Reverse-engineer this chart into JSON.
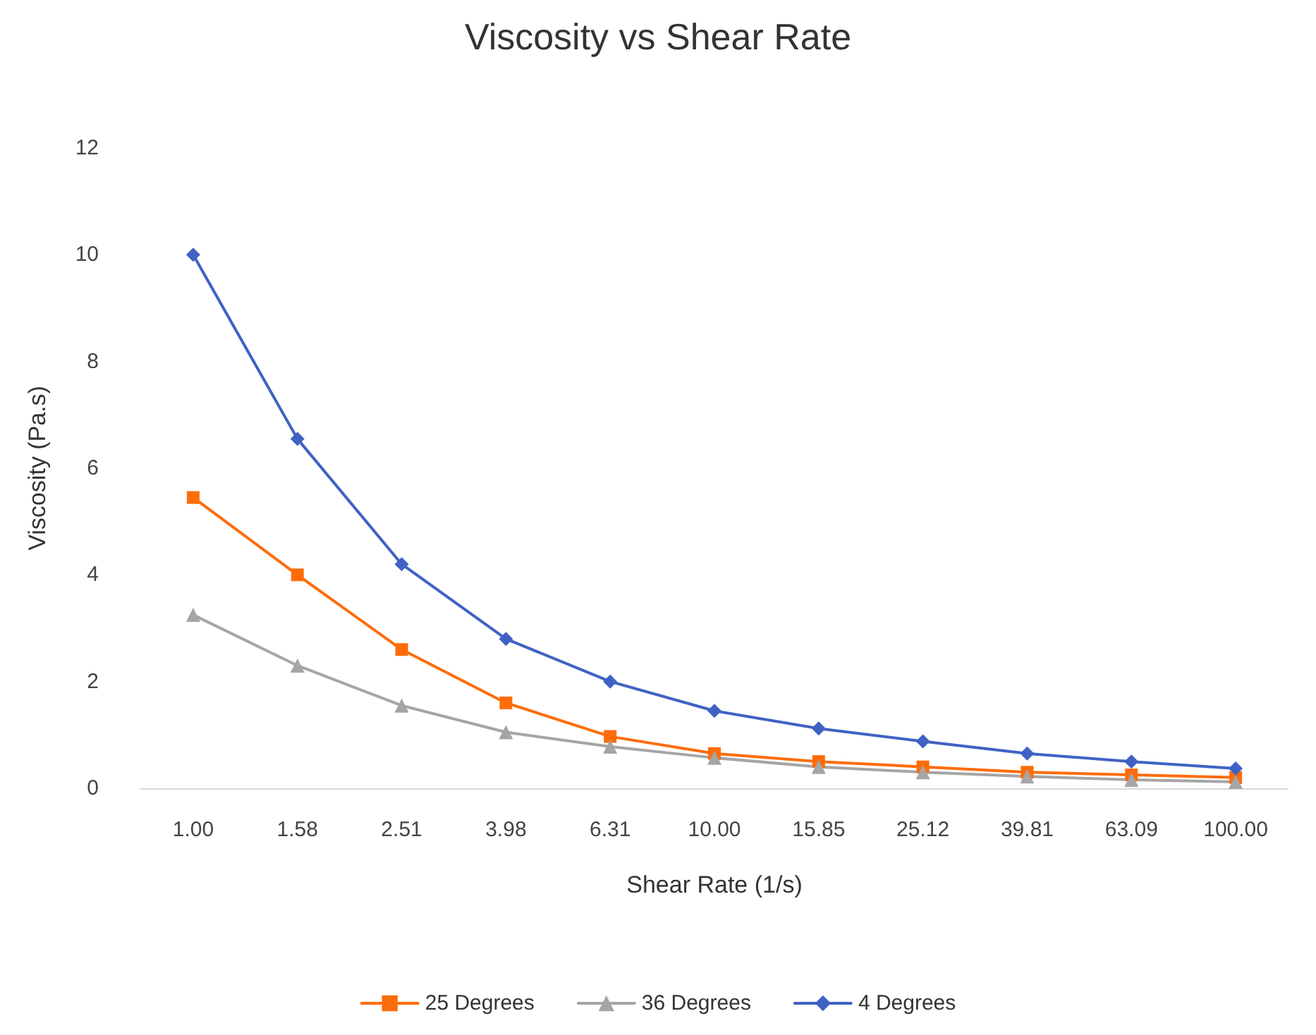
{
  "chart_data": {
    "type": "line",
    "title": "Viscosity vs Shear Rate",
    "xlabel": "Shear Rate (1/s)",
    "ylabel": "Viscosity (Pa.s)",
    "categories": [
      "1.00",
      "1.58",
      "2.51",
      "3.98",
      "6.31",
      "10.00",
      "15.85",
      "25.12",
      "39.81",
      "63.09",
      "100.00"
    ],
    "ylim": [
      0,
      12
    ],
    "yticks": [
      0,
      2,
      4,
      6,
      8,
      10,
      12
    ],
    "legend": "bottom",
    "series": [
      {
        "name": "25 Degrees",
        "color": "#fd6c0a",
        "marker": "square",
        "values": [
          5.45,
          4.0,
          2.6,
          1.6,
          0.97,
          0.65,
          0.5,
          0.4,
          0.3,
          0.25,
          0.2
        ]
      },
      {
        "name": "36 Degrees",
        "color": "#a5a5a5",
        "marker": "triangle",
        "values": [
          3.25,
          2.3,
          1.55,
          1.05,
          0.78,
          0.57,
          0.4,
          0.3,
          0.22,
          0.16,
          0.12
        ]
      },
      {
        "name": "4 Degrees",
        "color": "#3f62c4",
        "marker": "diamond",
        "values": [
          10.0,
          6.55,
          4.2,
          2.8,
          2.0,
          1.45,
          1.12,
          0.88,
          0.65,
          0.5,
          0.37
        ]
      }
    ]
  }
}
